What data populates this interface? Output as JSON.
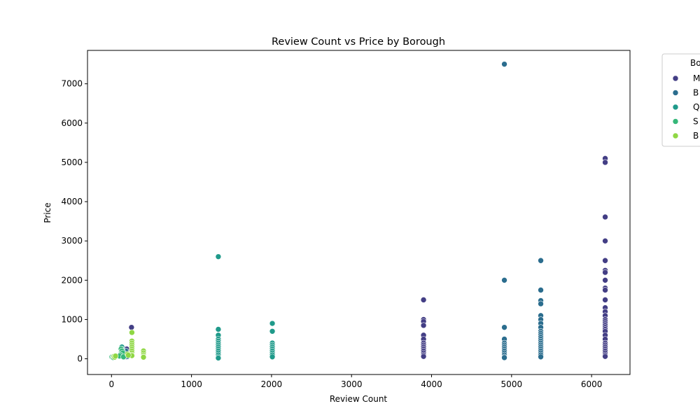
{
  "chart_data": {
    "type": "scatter",
    "title": "Review Count vs Price by Borough",
    "xlabel": "Review Count",
    "ylabel": "Price",
    "xlim": [
      -300,
      6480
    ],
    "ylim": [
      -400,
      7850
    ],
    "xticks": [
      0,
      1000,
      2000,
      3000,
      4000,
      5000,
      6000
    ],
    "yticks": [
      0,
      1000,
      2000,
      3000,
      4000,
      5000,
      6000,
      7000
    ],
    "grid": false,
    "legend": {
      "title": "Bo",
      "placement": "right-outside-top"
    },
    "series": [
      {
        "name": "M",
        "color": "#433e85",
        "points": [
          [
            6170,
            5100
          ],
          [
            6170,
            5000
          ],
          [
            6170,
            3610
          ],
          [
            6170,
            3000
          ],
          [
            6170,
            2500
          ],
          [
            6170,
            2250
          ],
          [
            6170,
            2200
          ],
          [
            6170,
            2000
          ],
          [
            6170,
            1800
          ],
          [
            6170,
            1750
          ],
          [
            6170,
            1500
          ],
          [
            6170,
            1300
          ],
          [
            6170,
            1200
          ],
          [
            6170,
            1100
          ],
          [
            6170,
            1000
          ],
          [
            6170,
            950
          ],
          [
            6170,
            900
          ],
          [
            6170,
            850
          ],
          [
            6170,
            800
          ],
          [
            6170,
            750
          ],
          [
            6170,
            700
          ],
          [
            6170,
            600
          ],
          [
            6170,
            500
          ],
          [
            6170,
            400
          ],
          [
            6170,
            350
          ],
          [
            6170,
            300
          ],
          [
            6170,
            250
          ],
          [
            6170,
            200
          ],
          [
            6170,
            150
          ],
          [
            6170,
            100
          ],
          [
            6170,
            60
          ],
          [
            3900,
            1500
          ],
          [
            3900,
            1000
          ],
          [
            3900,
            950
          ],
          [
            3900,
            850
          ],
          [
            3900,
            600
          ],
          [
            3900,
            500
          ],
          [
            3900,
            400
          ],
          [
            3900,
            350
          ],
          [
            3900,
            300
          ],
          [
            3900,
            250
          ],
          [
            3900,
            200
          ],
          [
            3900,
            150
          ],
          [
            3900,
            100
          ],
          [
            3900,
            60
          ],
          [
            250,
            800
          ],
          [
            190,
            250
          ],
          [
            190,
            100
          ],
          [
            190,
            50
          ]
        ]
      },
      {
        "name": "B",
        "color": "#2b6d8e",
        "points": [
          [
            4910,
            7500
          ],
          [
            4910,
            2000
          ],
          [
            4910,
            800
          ],
          [
            4910,
            500
          ],
          [
            4910,
            400
          ],
          [
            4910,
            350
          ],
          [
            4910,
            300
          ],
          [
            4910,
            250
          ],
          [
            4910,
            200
          ],
          [
            4910,
            150
          ],
          [
            4910,
            100
          ],
          [
            4910,
            50
          ],
          [
            4910,
            30
          ],
          [
            5365,
            2500
          ],
          [
            5365,
            1750
          ],
          [
            5365,
            1480
          ],
          [
            5365,
            1400
          ],
          [
            5365,
            1100
          ],
          [
            5365,
            1000
          ],
          [
            5365,
            900
          ],
          [
            5365,
            800
          ],
          [
            5365,
            700
          ],
          [
            5365,
            650
          ],
          [
            5365,
            600
          ],
          [
            5365,
            550
          ],
          [
            5365,
            500
          ],
          [
            5365,
            450
          ],
          [
            5365,
            400
          ],
          [
            5365,
            350
          ],
          [
            5365,
            300
          ],
          [
            5365,
            250
          ],
          [
            5365,
            200
          ],
          [
            5365,
            150
          ],
          [
            5365,
            100
          ],
          [
            5365,
            50
          ],
          [
            120,
            100
          ],
          [
            140,
            80
          ],
          [
            180,
            200
          ],
          [
            200,
            60
          ]
        ]
      },
      {
        "name": "Q",
        "color": "#1f9a8a",
        "points": [
          [
            1335,
            2600
          ],
          [
            1335,
            750
          ],
          [
            1335,
            600
          ],
          [
            1335,
            500
          ],
          [
            1335,
            450
          ],
          [
            1335,
            400
          ],
          [
            1335,
            350
          ],
          [
            1335,
            300
          ],
          [
            1335,
            250
          ],
          [
            1335,
            200
          ],
          [
            1335,
            150
          ],
          [
            1335,
            100
          ],
          [
            1335,
            50
          ],
          [
            1335,
            20
          ],
          [
            2010,
            900
          ],
          [
            2010,
            700
          ],
          [
            2010,
            400
          ],
          [
            2010,
            350
          ],
          [
            2010,
            300
          ],
          [
            2010,
            250
          ],
          [
            2010,
            200
          ],
          [
            2010,
            150
          ],
          [
            2010,
            100
          ],
          [
            2010,
            50
          ],
          [
            130,
            300
          ],
          [
            130,
            250
          ],
          [
            140,
            200
          ],
          [
            120,
            150
          ],
          [
            110,
            100
          ],
          [
            130,
            60
          ],
          [
            150,
            40
          ]
        ]
      },
      {
        "name": "S",
        "color": "#35b779",
        "points": [
          [
            5,
            45
          ],
          [
            15,
            35
          ],
          [
            25,
            30
          ],
          [
            120,
            250
          ],
          [
            130,
            200
          ],
          [
            140,
            150
          ],
          [
            110,
            100
          ],
          [
            100,
            70
          ],
          [
            150,
            50
          ]
        ]
      },
      {
        "name": "B",
        "color": "#8fd744",
        "points": [
          [
            255,
            670
          ],
          [
            255,
            450
          ],
          [
            255,
            400
          ],
          [
            255,
            350
          ],
          [
            255,
            300
          ],
          [
            255,
            250
          ],
          [
            255,
            200
          ],
          [
            255,
            150
          ],
          [
            255,
            100
          ],
          [
            255,
            80
          ],
          [
            400,
            200
          ],
          [
            400,
            150
          ],
          [
            400,
            100
          ],
          [
            400,
            60
          ],
          [
            400,
            40
          ],
          [
            30,
            60
          ],
          [
            40,
            40
          ],
          [
            50,
            70
          ],
          [
            200,
            120
          ],
          [
            210,
            90
          ]
        ]
      }
    ]
  }
}
